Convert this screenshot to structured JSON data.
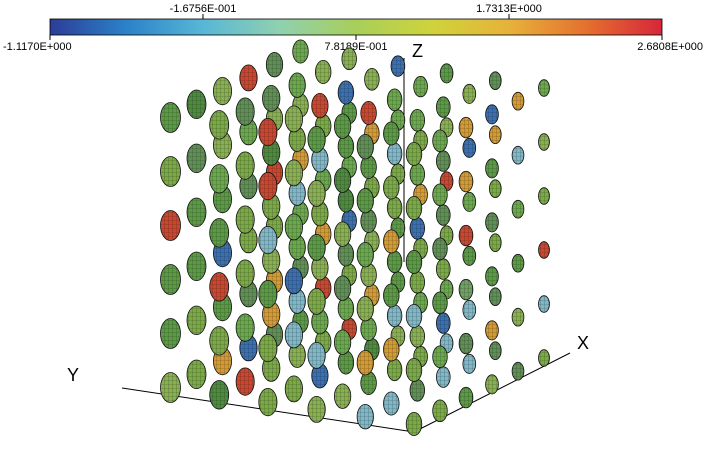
{
  "colorbar": {
    "top_labels": [
      "-1.6756E-001",
      "1.7313E+000"
    ],
    "bottom_labels": [
      "-1.1170E+000",
      "7.8189E-001",
      "2.6808E+000"
    ],
    "min_value": -1.117,
    "max_value": 2.6808,
    "colors": [
      "#2c3d97",
      "#2b82c8",
      "#58b7d6",
      "#8fd0b0",
      "#a8cf5a",
      "#cfd33c",
      "#e7b23a",
      "#e4712f",
      "#d7263a"
    ]
  },
  "axes": {
    "x_label": "X",
    "y_label": "Y",
    "z_label": "Z"
  },
  "scene": {
    "type": "3d-point-cloud",
    "grid": "6x6x6",
    "markers": "ellipsoid meshes colored by field value"
  }
}
